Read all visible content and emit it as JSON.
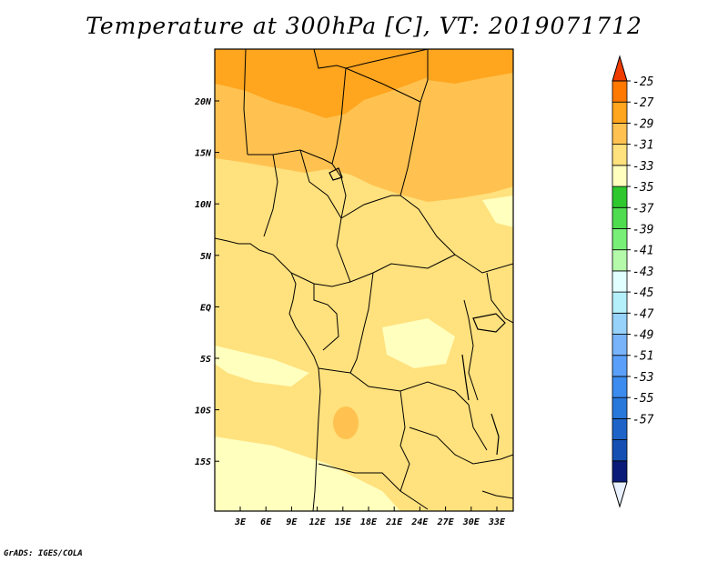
{
  "title": "Temperature at 300hPa [C], VT: 2019071712",
  "credit": "GrADS: IGES/COLA",
  "map": {
    "lon_ticks": [
      "3E",
      "6E",
      "9E",
      "12E",
      "15E",
      "18E",
      "21E",
      "24E",
      "27E",
      "30E",
      "33E"
    ],
    "lat_ticks": [
      "20N",
      "15N",
      "10N",
      "5N",
      "EQ",
      "5S",
      "10S",
      "15S"
    ]
  },
  "colorbar": {
    "labels": [
      "-25",
      "-27",
      "-29",
      "-31",
      "-33",
      "-35",
      "-37",
      "-39",
      "-41",
      "-43",
      "-45",
      "-47",
      "-49",
      "-51",
      "-53",
      "-55",
      "-57"
    ],
    "colors": [
      "#e8f0fe",
      "#0a1a78",
      "#1450b4",
      "#1e64c8",
      "#2878dc",
      "#3c8cf0",
      "#5aa0fa",
      "#78b4fa",
      "#96d2fa",
      "#b4f0fa",
      "#e1ffff",
      "#b4faaa",
      "#78f078",
      "#50dc50",
      "#2ec82e",
      "#ffffbe",
      "#ffe17d",
      "#ffc250",
      "#ffa51e",
      "#ff7800",
      "#f03c00"
    ]
  }
}
